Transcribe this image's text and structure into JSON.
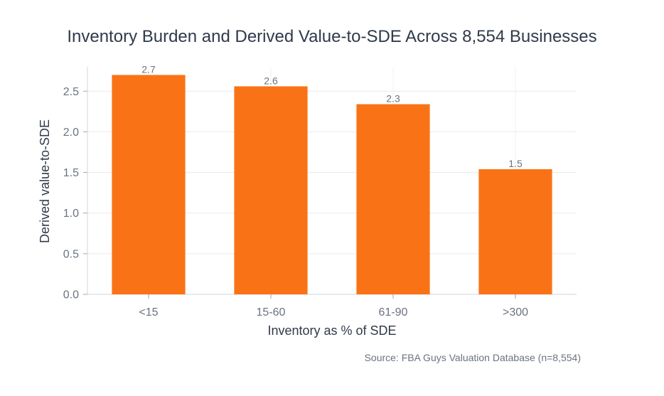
{
  "chart_data": {
    "type": "bar",
    "title": "Inventory Burden and Derived Value-to-SDE Across 8,554 Businesses",
    "xlabel": "Inventory as % of SDE",
    "ylabel": "Derived value-to-SDE",
    "categories": [
      "<15",
      "15-60",
      "61-90",
      ">300"
    ],
    "values": [
      2.7,
      2.56,
      2.34,
      1.54
    ],
    "data_labels": [
      "2.7",
      "2.6",
      "2.3",
      "1.5"
    ],
    "ylim": [
      0,
      2.8
    ],
    "yticks": [
      "0.0",
      "0.5",
      "1.0",
      "1.5",
      "2.0",
      "2.5"
    ],
    "grid": true,
    "bar_color": "#f97316",
    "source": "Source: FBA Guys Valuation Database (n=8,554)"
  }
}
